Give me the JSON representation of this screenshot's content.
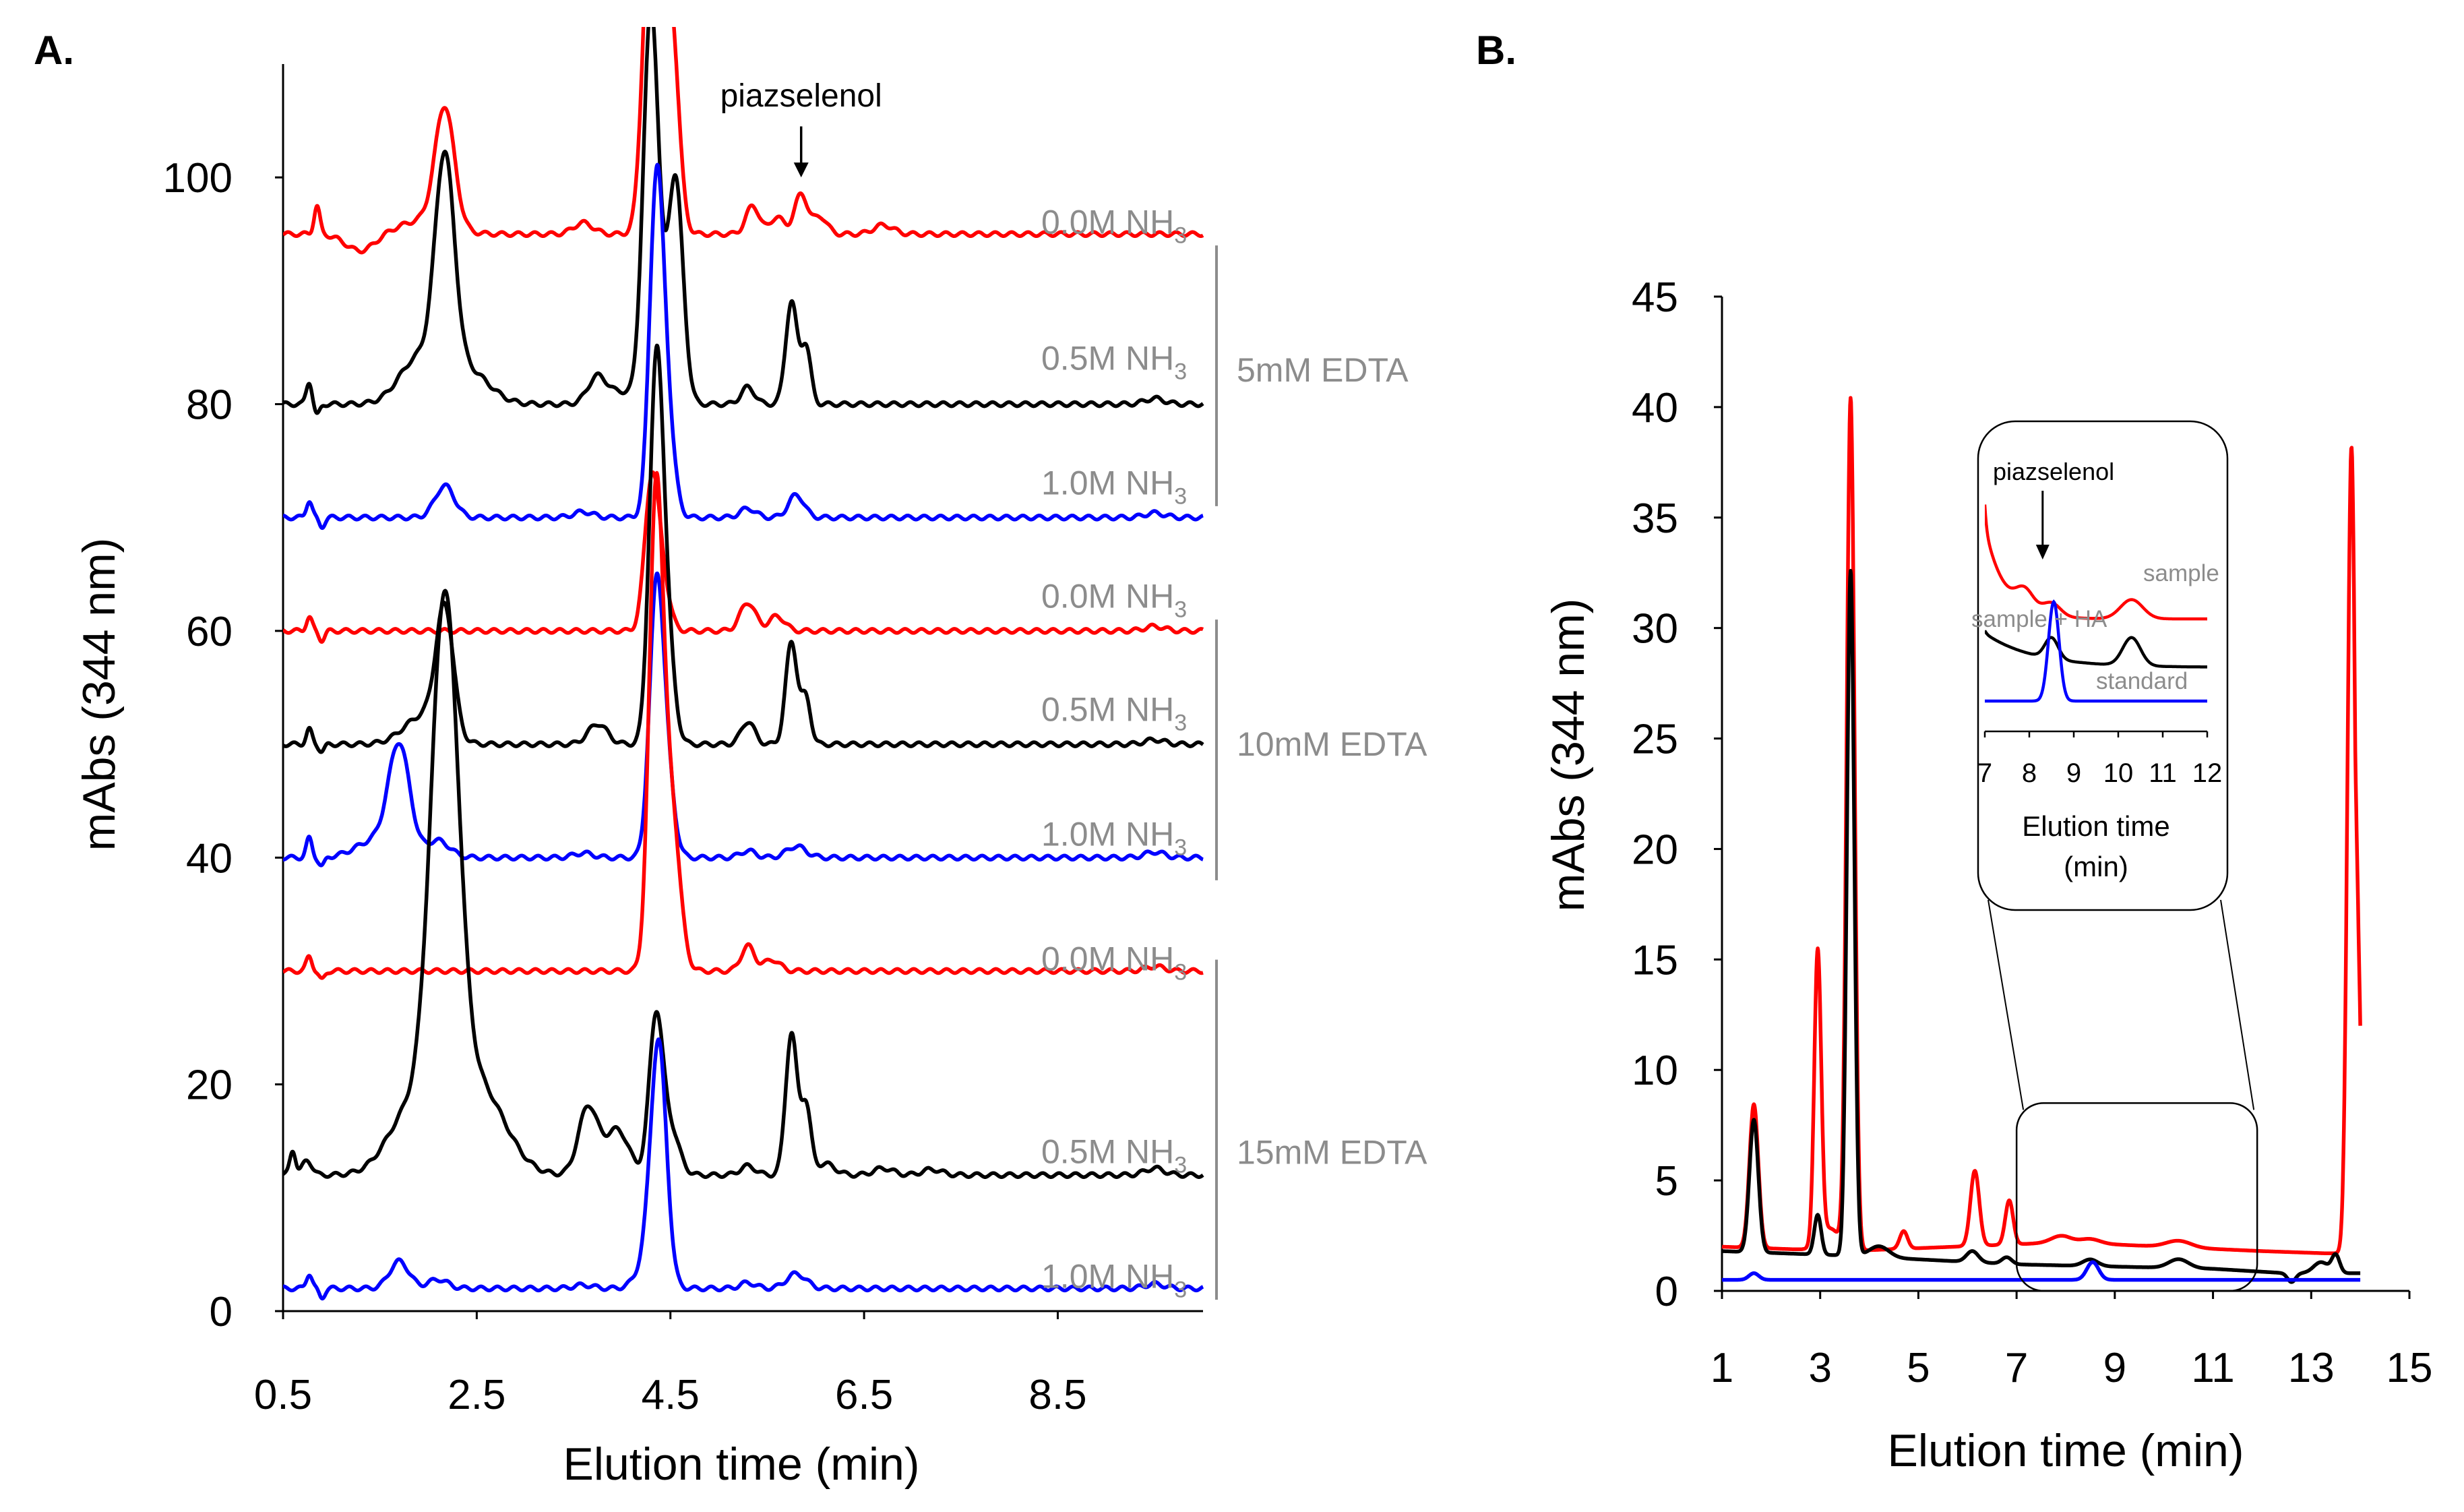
{
  "panel_labels": {
    "a": "A.",
    "b": "B."
  },
  "colors": {
    "red": "#ff0000",
    "black": "#000000",
    "blue": "#0000ff",
    "gray": "#8c8c8c",
    "axis": "#000000"
  },
  "chart_data": [
    {
      "type": "line",
      "panel": "A.",
      "xlabel": "Elution time (min)",
      "ylabel": "mAbs (344 nm)",
      "xlim": [
        0.5,
        10.0
      ],
      "ylim": [
        0,
        110
      ],
      "xticks": [
        "0.5",
        "2.5",
        "4.5",
        "6.5",
        "8.5"
      ],
      "yticks": [
        "0",
        "20",
        "40",
        "60",
        "80",
        "100"
      ],
      "annotation": "piazselenol",
      "series": [
        {
          "name": "5mM EDTA, 0.0M NH3",
          "color": "red",
          "baseline": 95,
          "peaks": [
            [
              0.85,
              2.5,
              0.03
            ],
            [
              1.3,
              -1.5,
              0.15
            ],
            [
              2.17,
              10.5,
              0.1
            ],
            [
              1.95,
              1.2,
              0.25
            ],
            [
              3.6,
              1.0,
              0.1
            ],
            [
              4.3,
              30,
              0.08
            ],
            [
              4.5,
              20,
              0.08
            ],
            [
              5.35,
              2.5,
              0.07
            ],
            [
              5.6,
              1.5,
              0.07
            ],
            [
              5.85,
              3.5,
              0.07
            ],
            [
              6.05,
              1.5,
              0.07
            ],
            [
              6.7,
              0.8,
              0.1
            ]
          ]
        },
        {
          "label": "0.0M NH",
          "color": "red"
        },
        {
          "name": "5mM EDTA, 0.5M NH3",
          "color": "black",
          "baseline": 80,
          "peaks": [
            [
              0.77,
              2.0,
              0.03
            ],
            [
              0.85,
              -1,
              0.03
            ],
            [
              2.17,
              19,
              0.1
            ],
            [
              1.9,
              4,
              0.2
            ],
            [
              2.4,
              3,
              0.22
            ],
            [
              3.75,
              2.5,
              0.1
            ],
            [
              4.0,
              1.0,
              0.1
            ],
            [
              4.3,
              35,
              0.08
            ],
            [
              4.55,
              20,
              0.08
            ],
            [
              5.3,
              1.5,
              0.07
            ],
            [
              5.75,
              9,
              0.06
            ],
            [
              5.9,
              5,
              0.05
            ],
            [
              9.5,
              0.5,
              0.1
            ]
          ]
        },
        {
          "name": "5mM EDTA, 1.0M NH3",
          "color": "blue",
          "baseline": 70,
          "peaks": [
            [
              0.77,
              1.5,
              0.03
            ],
            [
              0.9,
              -0.8,
              0.03
            ],
            [
              2.17,
              2.8,
              0.1
            ],
            [
              3.6,
              0.5,
              0.1
            ],
            [
              4.35,
              26,
              0.07
            ],
            [
              4.45,
              10,
              0.08
            ],
            [
              5.3,
              0.8,
              0.08
            ],
            [
              5.8,
              2,
              0.08
            ],
            [
              9.5,
              0.4,
              0.1
            ]
          ]
        },
        {
          "name": "10mM EDTA, 0.0M NH3",
          "color": "red",
          "baseline": 60,
          "peaks": [
            [
              0.77,
              1.2,
              0.03
            ],
            [
              0.9,
              -0.8,
              0.03
            ],
            [
              4.3,
              11.5,
              0.07
            ],
            [
              4.4,
              5,
              0.08
            ],
            [
              5.3,
              2.5,
              0.08
            ],
            [
              5.6,
              1.3,
              0.08
            ],
            [
              9.5,
              0.4,
              0.1
            ]
          ]
        },
        {
          "name": "10mM EDTA, 0.5M NH3",
          "color": "black",
          "baseline": 50,
          "peaks": [
            [
              0.77,
              1.3,
              0.03
            ],
            [
              0.9,
              -0.6,
              0.03
            ],
            [
              2.17,
              11,
              0.09
            ],
            [
              1.95,
              2.5,
              0.2
            ],
            [
              3.75,
              1.8,
              0.1
            ],
            [
              4.35,
              30,
              0.07
            ],
            [
              4.45,
              10,
              0.08
            ],
            [
              5.3,
              2,
              0.07
            ],
            [
              5.75,
              9,
              0.06
            ],
            [
              5.9,
              4,
              0.05
            ],
            [
              9.5,
              0.4,
              0.1
            ]
          ]
        },
        {
          "name": "10mM EDTA, 1.0M NH3",
          "color": "blue",
          "baseline": 40,
          "peaks": [
            [
              0.77,
              1.7,
              0.03
            ],
            [
              0.9,
              -0.8,
              0.03
            ],
            [
              1.7,
              9.5,
              0.11
            ],
            [
              1.45,
              1.5,
              0.2
            ],
            [
              2.1,
              1.5,
              0.12
            ],
            [
              3.6,
              0.4,
              0.1
            ],
            [
              4.35,
              21,
              0.07
            ],
            [
              4.45,
              8,
              0.08
            ],
            [
              5.3,
              0.6,
              0.08
            ],
            [
              5.8,
              1,
              0.1
            ],
            [
              9.5,
              0.5,
              0.1
            ]
          ]
        },
        {
          "name": "15mM EDTA, 0.0M NH3",
          "color": "red",
          "baseline": 30,
          "peaks": [
            [
              0.77,
              1.3,
              0.03
            ],
            [
              0.9,
              -0.8,
              0.03
            ],
            [
              4.35,
              40,
              0.07
            ],
            [
              4.5,
              15,
              0.09
            ],
            [
              5.3,
              2.2,
              0.07
            ],
            [
              5.55,
              1,
              0.08
            ],
            [
              9.5,
              0.4,
              0.1
            ]
          ]
        },
        {
          "name": "15mM EDTA, 0.5M NH3",
          "color": "black",
          "baseline": 12,
          "peaks": [
            [
              0.6,
              2.2,
              0.03
            ],
            [
              0.75,
              1.3,
              0.05
            ],
            [
              2.17,
              45,
              0.14
            ],
            [
              1.85,
              6,
              0.25
            ],
            [
              2.5,
              8,
              0.28
            ],
            [
              3.65,
              6,
              0.1
            ],
            [
              3.95,
              4,
              0.12
            ],
            [
              4.35,
              13.5,
              0.07
            ],
            [
              4.5,
              4,
              0.09
            ],
            [
              5.3,
              0.8,
              0.08
            ],
            [
              5.75,
              12.5,
              0.06
            ],
            [
              5.9,
              6,
              0.05
            ],
            [
              6.1,
              1,
              0.1
            ],
            [
              6.7,
              0.6,
              0.1
            ],
            [
              7.2,
              0.5,
              0.1
            ],
            [
              9.5,
              0.6,
              0.1
            ]
          ]
        },
        {
          "name": "15mM EDTA, 1.0M NH3",
          "color": "blue",
          "baseline": 2,
          "peaks": [
            [
              0.77,
              1.3,
              0.03
            ],
            [
              0.9,
              -0.8,
              0.03
            ],
            [
              1.7,
              2.4,
              0.1
            ],
            [
              2.1,
              0.8,
              0.1
            ],
            [
              3.6,
              0.3,
              0.1
            ],
            [
              4.38,
              19.5,
              0.08
            ],
            [
              4.3,
              3,
              0.12
            ],
            [
              5.3,
              0.5,
              0.08
            ],
            [
              5.8,
              1.3,
              0.1
            ],
            [
              9.5,
              0.4,
              0.1
            ]
          ]
        }
      ],
      "label_rows": [
        {
          "prefix": "0.0M NH",
          "sub": "3",
          "y": 96
        },
        {
          "prefix": "0.5M NH",
          "sub": "3",
          "y": 84
        },
        {
          "prefix": "1.0M NH",
          "sub": "3",
          "y": 73
        },
        {
          "prefix": "0.0M NH",
          "sub": "3",
          "y": 63
        },
        {
          "prefix": "0.5M NH",
          "sub": "3",
          "y": 53
        },
        {
          "prefix": "1.0M NH",
          "sub": "3",
          "y": 42
        },
        {
          "prefix": "0.0M NH",
          "sub": "3",
          "y": 31
        },
        {
          "prefix": "0.5M NH",
          "sub": "3",
          "y": 14
        },
        {
          "prefix": "1.0M NH",
          "sub": "3",
          "y": 3
        }
      ],
      "groups": [
        {
          "label": "5mM EDTA",
          "y_top": 94,
          "y_bottom": 71,
          "y_label": 83
        },
        {
          "label": "10mM EDTA",
          "y_top": 61,
          "y_bottom": 38,
          "y_label": 50
        },
        {
          "label": "15mM EDTA",
          "y_top": 31,
          "y_bottom": 1,
          "y_label": 14
        }
      ],
      "annotation_x": 5.85,
      "annotation_y_top": 104.5,
      "annotation_y_bottom": 100
    },
    {
      "type": "line",
      "panel": "B.",
      "xlabel": "Elution time (min)",
      "ylabel": "mAbs (344 nm)",
      "xlim": [
        1,
        15
      ],
      "ylim": [
        0,
        45
      ],
      "xticks": [
        "1",
        "3",
        "5",
        "7",
        "9",
        "11",
        "13",
        "15"
      ],
      "yticks": [
        "0",
        "5",
        "10",
        "15",
        "20",
        "25",
        "30",
        "35",
        "40",
        "45"
      ],
      "series": [
        {
          "name": "sample",
          "color": "red",
          "base": [
            [
              1,
              2.0
            ],
            [
              3.5,
              1.8
            ],
            [
              8,
              2.2
            ],
            [
              12,
              1.8
            ],
            [
              13.3,
              1.7
            ]
          ],
          "peaks": [
            [
              1.65,
              6.5,
              0.09
            ],
            [
              2.95,
              13.2,
              0.07
            ],
            [
              3.62,
              38.5,
              0.08
            ],
            [
              3.2,
              1,
              0.2
            ],
            [
              4.7,
              0.8,
              0.08
            ],
            [
              6.15,
              3.4,
              0.09
            ],
            [
              6.85,
              2.0,
              0.08
            ],
            [
              7.9,
              0.3,
              0.2
            ],
            [
              8.5,
              0.2,
              0.2
            ],
            [
              10.3,
              0.3,
              0.25
            ],
            [
              13.82,
              36.5,
              0.08
            ]
          ],
          "end": [
            [
              13.95,
              22
            ],
            [
              14.0,
              12
            ]
          ]
        },
        {
          "name": "sample + HA",
          "color": "black",
          "base": [
            [
              1,
              1.8
            ],
            [
              3.5,
              1.6
            ],
            [
              7,
              1.2
            ],
            [
              11,
              1.0
            ],
            [
              12.5,
              0.8
            ],
            [
              13,
              0.8
            ]
          ],
          "peaks": [
            [
              1.65,
              6.0,
              0.09
            ],
            [
              2.95,
              1.8,
              0.07
            ],
            [
              3.62,
              31,
              0.075
            ],
            [
              4.2,
              0.5,
              0.2
            ],
            [
              6.1,
              0.5,
              0.12
            ],
            [
              6.8,
              0.3,
              0.1
            ],
            [
              8.5,
              0.3,
              0.15
            ],
            [
              10.3,
              0.4,
              0.2
            ],
            [
              12.6,
              -0.4,
              0.08
            ],
            [
              13.5,
              0.8,
              0.08
            ],
            [
              13.2,
              0.5,
              0.15
            ]
          ],
          "end": [
            [
              14.0,
              1.0
            ]
          ]
        },
        {
          "name": "standard",
          "color": "blue",
          "base": [
            [
              1,
              0.5
            ],
            [
              14,
              0.5
            ]
          ],
          "peaks": [
            [
              1.65,
              0.3,
              0.1
            ],
            [
              8.55,
              0.8,
              0.12
            ]
          ]
        }
      ],
      "inset": {
        "xlabel": "Elution time (min)",
        "xlabel_line1": "Elution time",
        "xlabel_line2": "(min)",
        "xticks": [
          "7",
          "8",
          "9",
          "10",
          "11",
          "12"
        ],
        "xlim": [
          7,
          12
        ],
        "annotation": "piazselenol",
        "labels": [
          "sample",
          "sample + HA",
          "standard"
        ],
        "zoom_x": [
          7.0,
          11.9
        ],
        "zoom_y": [
          0,
          8.5
        ]
      }
    }
  ]
}
